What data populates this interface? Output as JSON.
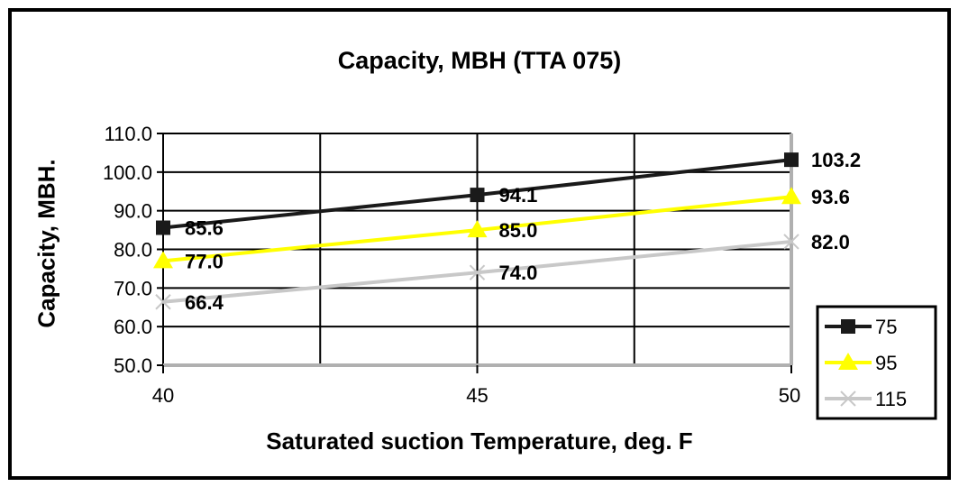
{
  "chart_data": {
    "type": "line",
    "title": "Capacity, MBH (TTA 075)",
    "xlabel": "Saturated suction Temperature, deg. F",
    "ylabel": "Capacity, MBH.",
    "x": [
      40,
      45,
      50
    ],
    "xticks": [
      "40",
      "45",
      "50"
    ],
    "ylim": [
      50,
      110
    ],
    "yticks": [
      "50.0",
      "60.0",
      "70.0",
      "80.0",
      "90.0",
      "100.0",
      "110.0"
    ],
    "grid": true,
    "legend_position": "bottom-right",
    "series": [
      {
        "name": "75",
        "values": [
          85.6,
          94.1,
          103.2
        ],
        "labels": [
          "85.6",
          "94.1",
          "103.2"
        ],
        "color": "#1a1a1a",
        "marker": "square"
      },
      {
        "name": "95",
        "values": [
          77.0,
          85.0,
          93.6
        ],
        "labels": [
          "77.0",
          "85.0",
          "93.6"
        ],
        "color": "#ffff00",
        "marker": "triangle"
      },
      {
        "name": "115",
        "values": [
          66.4,
          74.0,
          82.0
        ],
        "labels": [
          "66.4",
          "74.0",
          "82.0"
        ],
        "color": "#c8c8c8",
        "marker": "x"
      }
    ]
  }
}
